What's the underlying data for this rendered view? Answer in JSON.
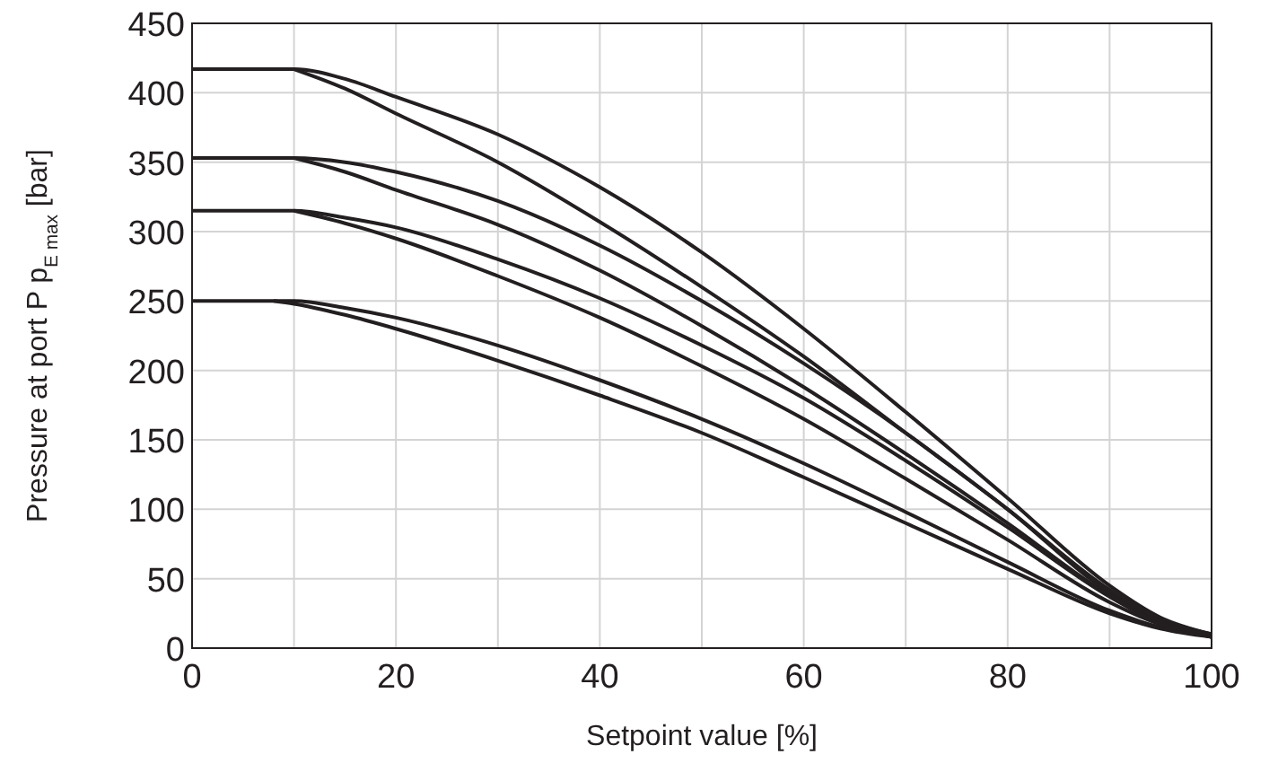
{
  "chart_data": {
    "type": "line",
    "xlabel": "Setpoint value [%]",
    "ylabel": "Pressure at port P p$_{E max}$ [bar]",
    "x": [
      0,
      5,
      10,
      15,
      20,
      30,
      40,
      50,
      60,
      70,
      80,
      90,
      95,
      100
    ],
    "series": [
      {
        "color": "#231f20",
        "values": [
          417,
          417,
          417,
          410,
          397,
          370,
          332,
          285,
          230,
          170,
          108,
          45,
          22,
          10
        ]
      },
      {
        "color": "#231f20",
        "x": [
          10,
          15,
          20,
          30,
          40,
          50,
          60,
          70,
          80,
          90,
          95,
          100
        ],
        "values": [
          417,
          403,
          385,
          350,
          307,
          260,
          210,
          155,
          100,
          40,
          20,
          8
        ]
      },
      {
        "color": "#231f20",
        "values": [
          353,
          353,
          353,
          350,
          343,
          322,
          290,
          250,
          205,
          155,
          100,
          42,
          21,
          10
        ]
      },
      {
        "color": "#231f20",
        "x": [
          10,
          15,
          20,
          30,
          40,
          50,
          60,
          70,
          80,
          90,
          95,
          100
        ],
        "values": [
          353,
          343,
          330,
          305,
          272,
          232,
          188,
          140,
          90,
          38,
          19,
          8
        ]
      },
      {
        "color": "#231f20",
        "values": [
          315,
          315,
          315,
          310,
          303,
          280,
          252,
          218,
          180,
          135,
          87,
          37,
          18,
          10
        ]
      },
      {
        "color": "#231f20",
        "x": [
          10,
          15,
          20,
          30,
          40,
          50,
          60,
          70,
          80,
          90,
          95,
          100
        ],
        "values": [
          315,
          306,
          295,
          268,
          238,
          203,
          165,
          122,
          78,
          33,
          17,
          8
        ]
      },
      {
        "color": "#231f20",
        "values": [
          250,
          250,
          250,
          245,
          238,
          218,
          193,
          165,
          133,
          98,
          62,
          27,
          15,
          10
        ]
      },
      {
        "color": "#231f20",
        "x": [
          8,
          10,
          15,
          20,
          30,
          40,
          50,
          60,
          70,
          80,
          90,
          95,
          100
        ],
        "values": [
          250,
          248,
          240,
          230,
          207,
          182,
          155,
          123,
          90,
          57,
          25,
          14,
          8
        ]
      }
    ],
    "xlim": [
      0,
      100
    ],
    "ylim": [
      0,
      450
    ],
    "xticks": [
      0,
      20,
      40,
      60,
      80,
      100
    ],
    "yticks": [
      0,
      50,
      100,
      150,
      200,
      250,
      300,
      350,
      400,
      450
    ],
    "grid": true,
    "line_style": "solid",
    "marker": "none"
  }
}
